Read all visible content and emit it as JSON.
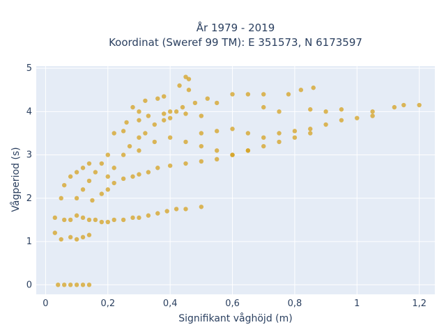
{
  "chart_data": {
    "type": "scatter",
    "title_line1": "År 1979 - 2019",
    "title_line2": "Koordinat (Sweref 99 TM): E 351573, N 6173597",
    "xlabel": "Signifikant våghöjd (m)",
    "ylabel": "Vågperiod (s)",
    "xlim": [
      -0.03,
      1.25
    ],
    "ylim": [
      -0.22,
      5.05
    ],
    "xticks": [
      {
        "v": 0,
        "label": "0"
      },
      {
        "v": 0.2,
        "label": "0,2"
      },
      {
        "v": 0.4,
        "label": "0,4"
      },
      {
        "v": 0.6,
        "label": "0,6"
      },
      {
        "v": 0.8,
        "label": "0,8"
      },
      {
        "v": 1.0,
        "label": "1"
      },
      {
        "v": 1.2,
        "label": "1,2"
      }
    ],
    "yticks": [
      {
        "v": 0,
        "label": "0"
      },
      {
        "v": 1,
        "label": "1"
      },
      {
        "v": 2,
        "label": "2"
      },
      {
        "v": 3,
        "label": "3"
      },
      {
        "v": 4,
        "label": "4"
      },
      {
        "v": 5,
        "label": "5"
      }
    ],
    "grid": true,
    "legend": "none",
    "marker_color": "#D4A120",
    "background_color": "#E5ECF6",
    "series": [
      {
        "values": [
          [
            0.04,
            0
          ],
          [
            0.06,
            0
          ],
          [
            0.08,
            0
          ],
          [
            0.1,
            0
          ],
          [
            0.12,
            0
          ],
          [
            0.14,
            0
          ],
          [
            0.03,
            1.2
          ],
          [
            0.03,
            1.55
          ],
          [
            0.05,
            1.05
          ],
          [
            0.06,
            1.5
          ],
          [
            0.05,
            2.0
          ],
          [
            0.06,
            2.3
          ],
          [
            0.08,
            1.1
          ],
          [
            0.08,
            2.5
          ],
          [
            0.1,
            1.05
          ],
          [
            0.1,
            2.6
          ],
          [
            0.12,
            1.1
          ],
          [
            0.12,
            2.7
          ],
          [
            0.14,
            1.15
          ],
          [
            0.14,
            2.8
          ],
          [
            0.08,
            1.5
          ],
          [
            0.1,
            1.6
          ],
          [
            0.12,
            1.55
          ],
          [
            0.14,
            1.5
          ],
          [
            0.16,
            1.5
          ],
          [
            0.18,
            1.45
          ],
          [
            0.2,
            1.45
          ],
          [
            0.22,
            1.5
          ],
          [
            0.25,
            1.5
          ],
          [
            0.28,
            1.55
          ],
          [
            0.3,
            1.55
          ],
          [
            0.33,
            1.6
          ],
          [
            0.36,
            1.65
          ],
          [
            0.39,
            1.7
          ],
          [
            0.42,
            1.75
          ],
          [
            0.45,
            1.75
          ],
          [
            0.5,
            1.8
          ],
          [
            0.1,
            2.0
          ],
          [
            0.12,
            2.2
          ],
          [
            0.14,
            2.4
          ],
          [
            0.16,
            2.6
          ],
          [
            0.18,
            2.8
          ],
          [
            0.2,
            3.0
          ],
          [
            0.15,
            1.95
          ],
          [
            0.18,
            2.1
          ],
          [
            0.2,
            2.2
          ],
          [
            0.22,
            2.35
          ],
          [
            0.25,
            2.45
          ],
          [
            0.28,
            2.5
          ],
          [
            0.3,
            2.55
          ],
          [
            0.33,
            2.6
          ],
          [
            0.36,
            2.7
          ],
          [
            0.4,
            2.75
          ],
          [
            0.2,
            2.5
          ],
          [
            0.22,
            2.7
          ],
          [
            0.25,
            3.0
          ],
          [
            0.27,
            3.2
          ],
          [
            0.3,
            3.4
          ],
          [
            0.32,
            3.5
          ],
          [
            0.35,
            3.7
          ],
          [
            0.38,
            3.8
          ],
          [
            0.4,
            3.85
          ],
          [
            0.22,
            3.5
          ],
          [
            0.25,
            3.55
          ],
          [
            0.26,
            3.75
          ],
          [
            0.3,
            3.8
          ],
          [
            0.33,
            3.9
          ],
          [
            0.38,
            3.95
          ],
          [
            0.42,
            4.0
          ],
          [
            0.45,
            3.95
          ],
          [
            0.5,
            3.9
          ],
          [
            0.3,
            3.1
          ],
          [
            0.35,
            3.3
          ],
          [
            0.4,
            3.4
          ],
          [
            0.45,
            3.3
          ],
          [
            0.5,
            3.2
          ],
          [
            0.55,
            3.1
          ],
          [
            0.6,
            3.0
          ],
          [
            0.65,
            3.1
          ],
          [
            0.45,
            2.8
          ],
          [
            0.5,
            2.85
          ],
          [
            0.55,
            2.9
          ],
          [
            0.6,
            3.0
          ],
          [
            0.65,
            3.1
          ],
          [
            0.7,
            3.2
          ],
          [
            0.75,
            3.3
          ],
          [
            0.8,
            3.4
          ],
          [
            0.5,
            3.5
          ],
          [
            0.55,
            3.55
          ],
          [
            0.6,
            3.6
          ],
          [
            0.65,
            3.5
          ],
          [
            0.7,
            3.4
          ],
          [
            0.75,
            3.5
          ],
          [
            0.8,
            3.55
          ],
          [
            0.85,
            3.5
          ],
          [
            0.85,
            3.6
          ],
          [
            0.9,
            3.7
          ],
          [
            0.95,
            3.8
          ],
          [
            1.0,
            3.85
          ],
          [
            1.05,
            3.9
          ],
          [
            0.28,
            4.1
          ],
          [
            0.3,
            4.0
          ],
          [
            0.32,
            4.25
          ],
          [
            0.36,
            4.3
          ],
          [
            0.38,
            4.35
          ],
          [
            0.4,
            4.0
          ],
          [
            0.44,
            4.1
          ],
          [
            0.45,
            4.8
          ],
          [
            0.46,
            4.75
          ],
          [
            0.43,
            4.6
          ],
          [
            0.46,
            4.5
          ],
          [
            0.48,
            4.2
          ],
          [
            0.52,
            4.3
          ],
          [
            0.55,
            4.2
          ],
          [
            0.6,
            4.4
          ],
          [
            0.65,
            4.4
          ],
          [
            0.7,
            4.4
          ],
          [
            0.7,
            4.1
          ],
          [
            0.75,
            4.0
          ],
          [
            0.78,
            4.4
          ],
          [
            0.82,
            4.5
          ],
          [
            0.86,
            4.55
          ],
          [
            0.85,
            4.05
          ],
          [
            0.9,
            4.0
          ],
          [
            0.95,
            4.05
          ],
          [
            1.05,
            4.0
          ],
          [
            1.12,
            4.1
          ],
          [
            1.15,
            4.15
          ],
          [
            1.2,
            4.15
          ]
        ]
      }
    ]
  }
}
